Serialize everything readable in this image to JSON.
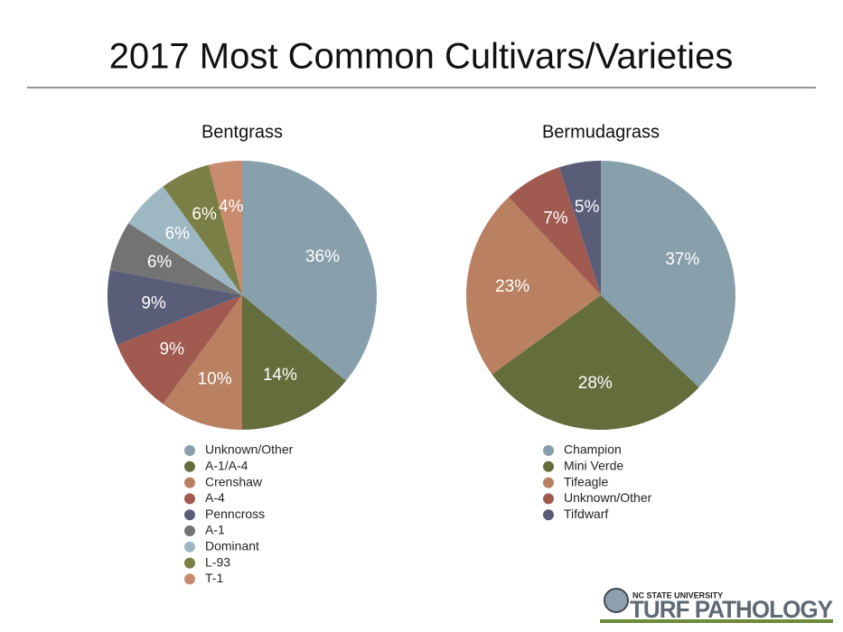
{
  "title": "2017 Most Common Cultivars/Varieties",
  "logo": {
    "line1": "NC STATE UNIVERSITY",
    "line2": "TURF PATHOLOGY"
  },
  "chart_data": [
    {
      "type": "pie",
      "title": "Bentgrass",
      "categories": [
        "Unknown/Other",
        "A-1/A-4",
        "Crenshaw",
        "A-4",
        "Penncross",
        "A-1",
        "Dominant",
        "L-93",
        "T-1"
      ],
      "values": [
        36,
        14,
        10,
        9,
        9,
        6,
        6,
        6,
        4
      ],
      "value_labels": [
        "36%",
        "14%",
        "10%",
        "9%",
        "9%",
        "6%",
        "6%",
        "6%",
        "4%"
      ],
      "colors": [
        "#87a0ab",
        "#646d3c",
        "#b98062",
        "#a05a50",
        "#5a5d78",
        "#737373",
        "#9db7c3",
        "#7a7f45",
        "#c98b6e"
      ]
    },
    {
      "type": "pie",
      "title": "Bermudagrass",
      "categories": [
        "Champion",
        "Mini Verde",
        "Tifeagle",
        "Unknown/Other",
        "Tifdwarf"
      ],
      "values": [
        37,
        28,
        23,
        7,
        5
      ],
      "value_labels": [
        "37%",
        "28%",
        "23%",
        "7%",
        "5%"
      ],
      "colors": [
        "#87a0ab",
        "#646d3c",
        "#b98062",
        "#a05a50",
        "#5a5d78"
      ]
    }
  ]
}
